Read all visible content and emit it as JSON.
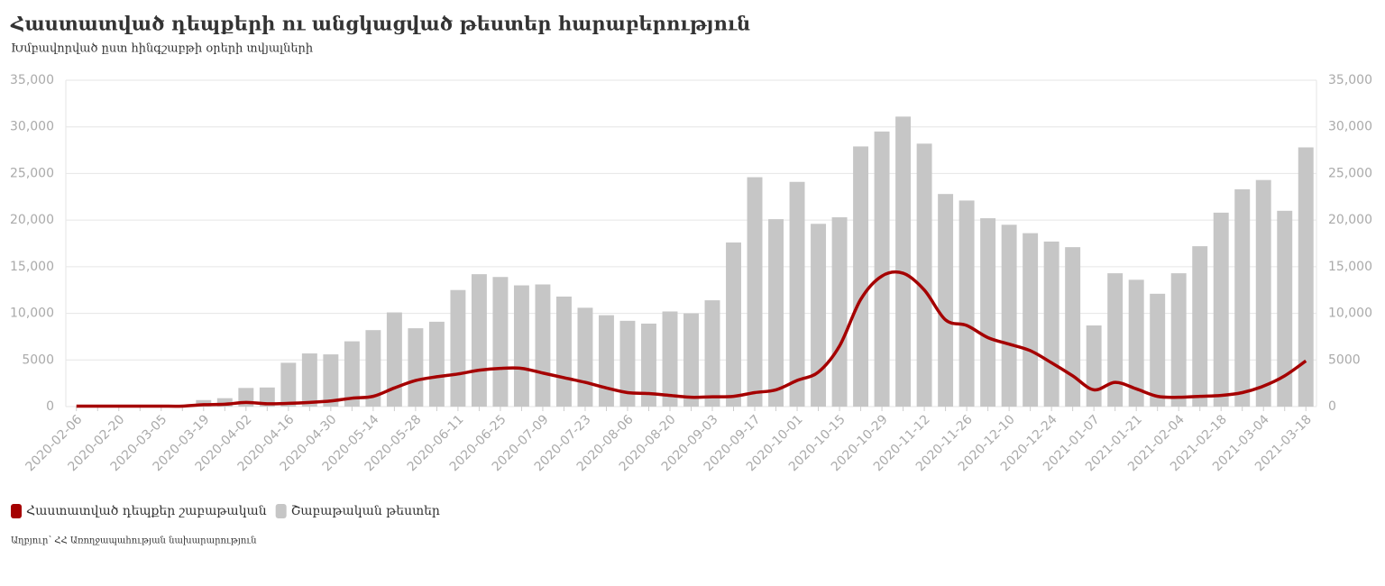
{
  "chart_data": {
    "type": "bar",
    "title": "Հաստատված դեպքերի ու անցկացված թեստեր հարաբերություն",
    "subtitle": "Խմբավորված ըստ հինգշաբթի օրերի տվյալների",
    "source": "Աղբյուր՝ ՀՀ Առողջապահության նախարարություն",
    "categories": [
      "2020-02-06",
      null,
      "2020-02-20",
      null,
      "2020-03-05",
      null,
      "2020-03-19",
      null,
      "2020-04-02",
      null,
      "2020-04-16",
      null,
      "2020-04-30",
      null,
      "2020-05-14",
      null,
      "2020-05-28",
      null,
      "2020-06-11",
      null,
      "2020-06-25",
      null,
      "2020-07-09",
      null,
      "2020-07-23",
      null,
      "2020-08-06",
      null,
      "2020-08-20",
      null,
      "2020-09-03",
      null,
      "2020-09-17",
      null,
      "2020-10-01",
      null,
      "2020-10-15",
      null,
      "2020-10-29",
      null,
      "2020-11-12",
      null,
      "2020-11-26",
      null,
      "2020-12-10",
      null,
      "2020-12-24",
      null,
      "2021-01-07",
      null,
      "2021-01-21",
      null,
      "2021-02-04",
      null,
      "2021-02-18",
      null,
      "2021-03-04",
      null,
      "2021-03-18"
    ],
    "series": [
      {
        "name": "Հաստատված դեպքեր շաբաթական",
        "type": "line",
        "axis": "y2",
        "color": "#a50000",
        "values": [
          50,
          50,
          50,
          50,
          50,
          50,
          200,
          250,
          450,
          300,
          350,
          450,
          600,
          900,
          1100,
          2000,
          2800,
          3200,
          3500,
          3900,
          4100,
          4100,
          3600,
          3100,
          2600,
          2000,
          1500,
          1400,
          1200,
          1000,
          1050,
          1100,
          1500,
          1800,
          2800,
          3700,
          6500,
          11500,
          14000,
          14300,
          12500,
          9300,
          8700,
          7400,
          6700,
          6000,
          4700,
          3300,
          1800,
          2600,
          1900,
          1100,
          1000,
          1100,
          1200,
          1500,
          2200,
          3300,
          4900
        ]
      },
      {
        "name": "Շաբաթական թեստեր",
        "type": "bar",
        "color": "#c6c6c6",
        "values": [
          0,
          0,
          0,
          0,
          0,
          0,
          700,
          900,
          2000,
          2050,
          4700,
          5700,
          5600,
          7000,
          8200,
          10100,
          8400,
          9100,
          12500,
          14200,
          13900,
          13000,
          13100,
          11800,
          10600,
          9800,
          9200,
          8900,
          10200,
          10000,
          11400,
          17600,
          24600,
          20100,
          24100,
          19600,
          20300,
          27900,
          29500,
          31100,
          28200,
          22800,
          22100,
          20200,
          19500,
          18600,
          17700,
          17100,
          8700,
          14300,
          13600,
          12100,
          14300,
          17200,
          20800,
          23300,
          24300,
          21000,
          27800
        ]
      }
    ],
    "ylim": [
      0,
      35000
    ],
    "yticks": [
      0,
      5000,
      {
        "value": 10000,
        "label": "10,000"
      },
      {
        "value": 15000,
        "label": "15,000"
      },
      {
        "value": 20000,
        "label": "20,000"
      },
      {
        "value": 25000,
        "label": "25,000"
      },
      {
        "value": 30000,
        "label": "30,000"
      },
      {
        "value": 35000,
        "label": "35,000"
      }
    ],
    "y2lim": [
      0,
      35000
    ],
    "y2ticks": [
      0,
      5000,
      {
        "value": 10000,
        "label": "10,000"
      },
      {
        "value": 15000,
        "label": "15,000"
      },
      {
        "value": 20000,
        "label": "20,000"
      },
      {
        "value": 25000,
        "label": "25,000"
      },
      {
        "value": 30000,
        "label": "30,000"
      },
      {
        "value": 35000,
        "label": "35,000"
      }
    ],
    "grid": true,
    "legend": "bottom-left"
  }
}
